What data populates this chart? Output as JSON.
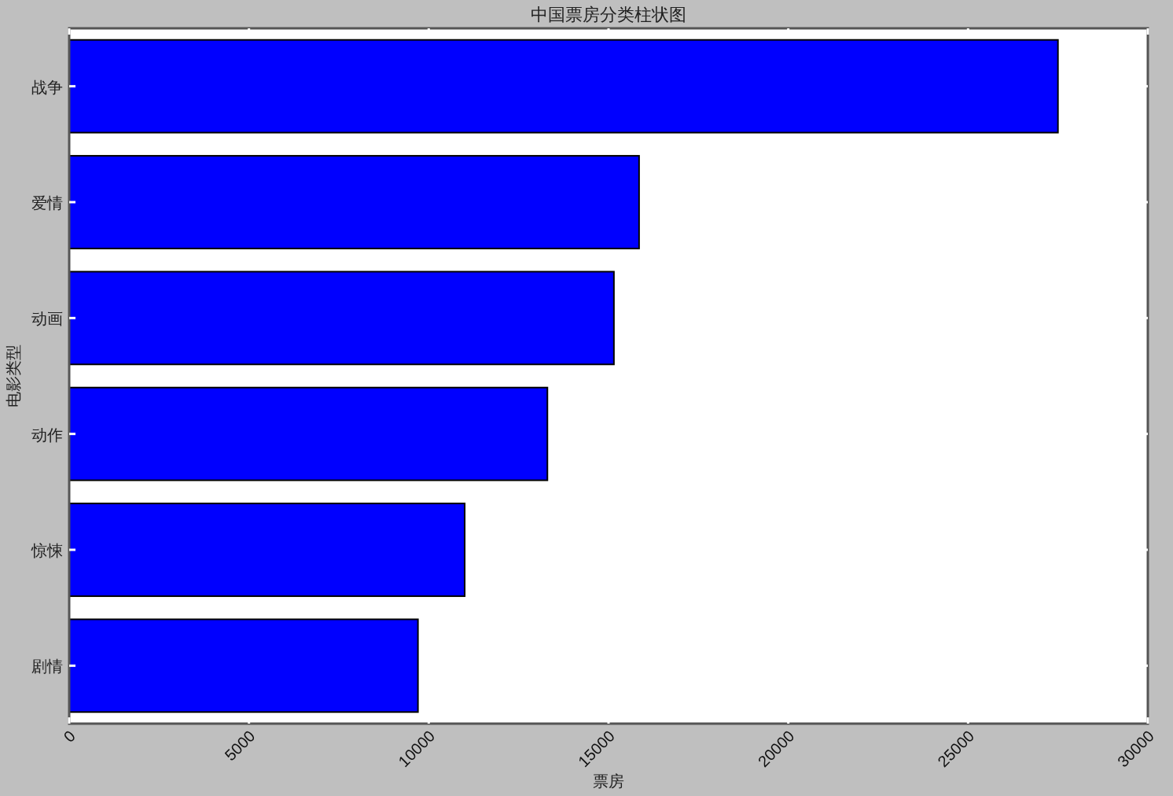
{
  "chart_data": {
    "type": "bar",
    "orientation": "horizontal",
    "title": "中国票房分类柱状图",
    "xlabel": "票房",
    "ylabel": "电影类型",
    "categories": [
      "战争",
      "爱情",
      "动画",
      "动作",
      "惊悚",
      "剧情"
    ],
    "values": [
      27500,
      15850,
      15150,
      13300,
      11000,
      9700
    ],
    "color": "#0000ff",
    "xlim": [
      0,
      30000
    ],
    "xticks": [
      0,
      5000,
      10000,
      15000,
      20000,
      25000,
      30000
    ],
    "grid": false
  }
}
